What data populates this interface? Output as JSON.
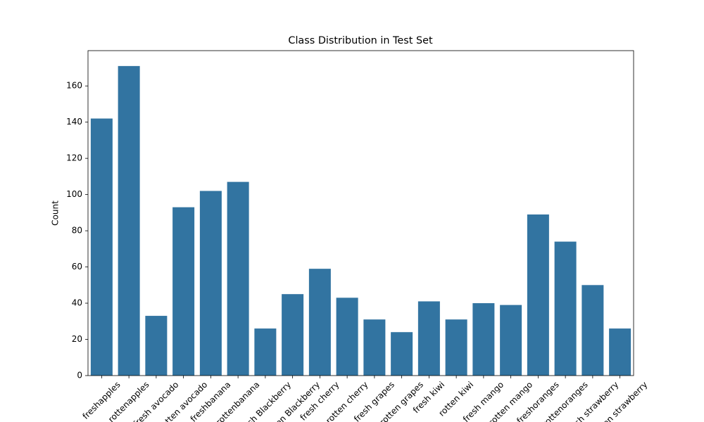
{
  "chart_data": {
    "type": "bar",
    "title": "Class Distribution in Test Set",
    "y_label": "Count",
    "categories": [
      "freshapples",
      "rottenapples",
      "fresh avocado",
      "rotten avocado",
      "freshbanana",
      "rottenbanana",
      "fresh Blackberry",
      "rotten Blackberry",
      "fresh cherry",
      "rotten cherry",
      "fresh grapes",
      "rotten grapes",
      "fresh kiwi",
      "rotten kiwi",
      "fresh mango",
      "rotten mango",
      "freshoranges",
      "rottenoranges",
      "fresh strawberry",
      "rotten strawberry"
    ],
    "values": [
      142,
      171,
      33,
      93,
      102,
      107,
      26,
      45,
      59,
      43,
      31,
      24,
      41,
      31,
      40,
      39,
      89,
      74,
      50,
      26
    ],
    "color": "#3274a1",
    "ylim": [
      0,
      179.5
    ],
    "yticks": [
      0,
      20,
      40,
      60,
      80,
      100,
      120,
      140,
      160
    ]
  }
}
